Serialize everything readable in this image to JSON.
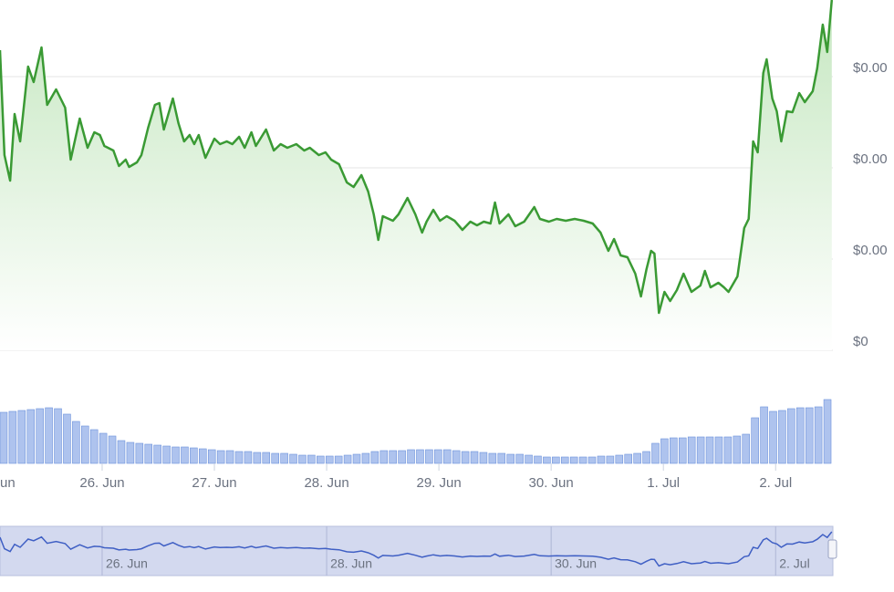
{
  "chart_data": {
    "type": "line",
    "color": "#3a9a34",
    "area_color": "#cdebc9",
    "xlim": [
      -0.91,
      6.51
    ],
    "xticks": [
      {
        "value": -1,
        "label": "un"
      },
      {
        "value": 0,
        "label": "26. Jun"
      },
      {
        "value": 1,
        "label": "27. Jun"
      },
      {
        "value": 2,
        "label": "28. Jun"
      },
      {
        "value": 3,
        "label": "29. Jun"
      },
      {
        "value": 4,
        "label": "30. Jun"
      },
      {
        "value": 5,
        "label": "1. Jul"
      },
      {
        "value": 6,
        "label": "2. Jul"
      }
    ],
    "ylim": [
      0,
      3.84
    ],
    "yticks": [
      {
        "value": 0,
        "label": "$0"
      },
      {
        "value": 1,
        "label": "$0.00"
      },
      {
        "value": 2,
        "label": "$0.00"
      },
      {
        "value": 3,
        "label": "$0.00"
      }
    ],
    "grid": true,
    "x": [
      -0.91,
      -0.87,
      -0.82,
      -0.78,
      -0.73,
      -0.66,
      -0.61,
      -0.54,
      -0.49,
      -0.41,
      -0.33,
      -0.28,
      -0.2,
      -0.13,
      -0.07,
      -0.02,
      0.02,
      0.1,
      0.15,
      0.21,
      0.24,
      0.31,
      0.35,
      0.41,
      0.47,
      0.51,
      0.55,
      0.63,
      0.68,
      0.73,
      0.78,
      0.82,
      0.86,
      0.92,
      1.0,
      1.05,
      1.11,
      1.16,
      1.22,
      1.27,
      1.33,
      1.37,
      1.46,
      1.53,
      1.59,
      1.65,
      1.73,
      1.8,
      1.85,
      1.93,
      1.99,
      2.04,
      2.11,
      2.18,
      2.24,
      2.31,
      2.37,
      2.42,
      2.46,
      2.5,
      2.59,
      2.64,
      2.72,
      2.79,
      2.85,
      2.89,
      2.95,
      3.01,
      3.07,
      3.14,
      3.21,
      3.28,
      3.34,
      3.4,
      3.46,
      3.5,
      3.54,
      3.62,
      3.68,
      3.76,
      3.85,
      3.9,
      3.98,
      4.05,
      4.13,
      4.21,
      4.29,
      4.37,
      4.44,
      4.51,
      4.56,
      4.62,
      4.68,
      4.75,
      4.8,
      4.85,
      4.89,
      4.92,
      4.96,
      5.01,
      5.06,
      5.12,
      5.18,
      5.25,
      5.33,
      5.37,
      5.42,
      5.49,
      5.54,
      5.58,
      5.66,
      5.72,
      5.76,
      5.8,
      5.84,
      5.89,
      5.92,
      5.97,
      6.01,
      6.05,
      6.1,
      6.15,
      6.21,
      6.26,
      6.33,
      6.37,
      6.42,
      6.46,
      6.5
    ],
    "values": [
      3.29,
      2.14,
      1.86,
      2.59,
      2.29,
      3.11,
      2.94,
      3.32,
      2.69,
      2.86,
      2.66,
      2.09,
      2.54,
      2.22,
      2.39,
      2.36,
      2.24,
      2.19,
      2.02,
      2.09,
      2.01,
      2.06,
      2.14,
      2.44,
      2.69,
      2.71,
      2.42,
      2.76,
      2.49,
      2.29,
      2.36,
      2.26,
      2.36,
      2.11,
      2.32,
      2.26,
      2.29,
      2.26,
      2.34,
      2.22,
      2.39,
      2.24,
      2.42,
      2.19,
      2.26,
      2.22,
      2.26,
      2.19,
      2.22,
      2.14,
      2.17,
      2.09,
      2.04,
      1.84,
      1.79,
      1.92,
      1.74,
      1.49,
      1.21,
      1.47,
      1.42,
      1.49,
      1.67,
      1.49,
      1.29,
      1.41,
      1.54,
      1.42,
      1.47,
      1.42,
      1.32,
      1.41,
      1.37,
      1.41,
      1.39,
      1.62,
      1.39,
      1.49,
      1.36,
      1.41,
      1.57,
      1.44,
      1.41,
      1.44,
      1.42,
      1.44,
      1.42,
      1.39,
      1.29,
      1.09,
      1.22,
      1.04,
      1.02,
      0.84,
      0.59,
      0.89,
      1.09,
      1.06,
      0.41,
      0.64,
      0.54,
      0.66,
      0.84,
      0.64,
      0.71,
      0.87,
      0.69,
      0.74,
      0.69,
      0.64,
      0.81,
      1.34,
      1.44,
      2.29,
      2.17,
      3.04,
      3.19,
      2.76,
      2.62,
      2.29,
      2.62,
      2.61,
      2.82,
      2.72,
      2.84,
      3.09,
      3.57,
      3.27,
      3.84
    ],
    "volume": {
      "color": "#aec3ee",
      "edge": "#6d92db",
      "values": [
        56,
        57,
        58,
        59,
        60,
        61,
        60,
        54,
        46,
        41,
        37,
        33,
        30,
        25,
        23,
        22,
        21,
        20,
        19,
        18,
        18,
        17,
        16,
        15,
        14,
        14,
        13,
        13,
        12,
        12,
        11,
        11,
        10,
        9,
        9,
        8,
        8,
        8,
        9,
        10,
        11,
        13,
        14,
        14,
        14,
        15,
        15,
        15,
        15,
        15,
        14,
        13,
        13,
        12,
        11,
        11,
        10,
        10,
        9,
        8,
        7,
        7,
        7,
        7,
        7,
        7,
        8,
        8,
        9,
        10,
        11,
        13,
        22,
        27,
        28,
        28,
        29,
        29,
        29,
        29,
        29,
        30,
        32,
        50,
        62,
        57,
        58,
        60,
        61,
        61,
        62,
        70
      ]
    },
    "navigator": {
      "color": "#3f5fc4",
      "fill": "#d3d9ef",
      "xticks": [
        {
          "value": 0,
          "label": "26. Jun"
        },
        {
          "value": 2,
          "label": "28. Jun"
        },
        {
          "value": 4,
          "label": "30. Jun"
        },
        {
          "value": 6,
          "label": "2. Jul"
        }
      ]
    }
  }
}
